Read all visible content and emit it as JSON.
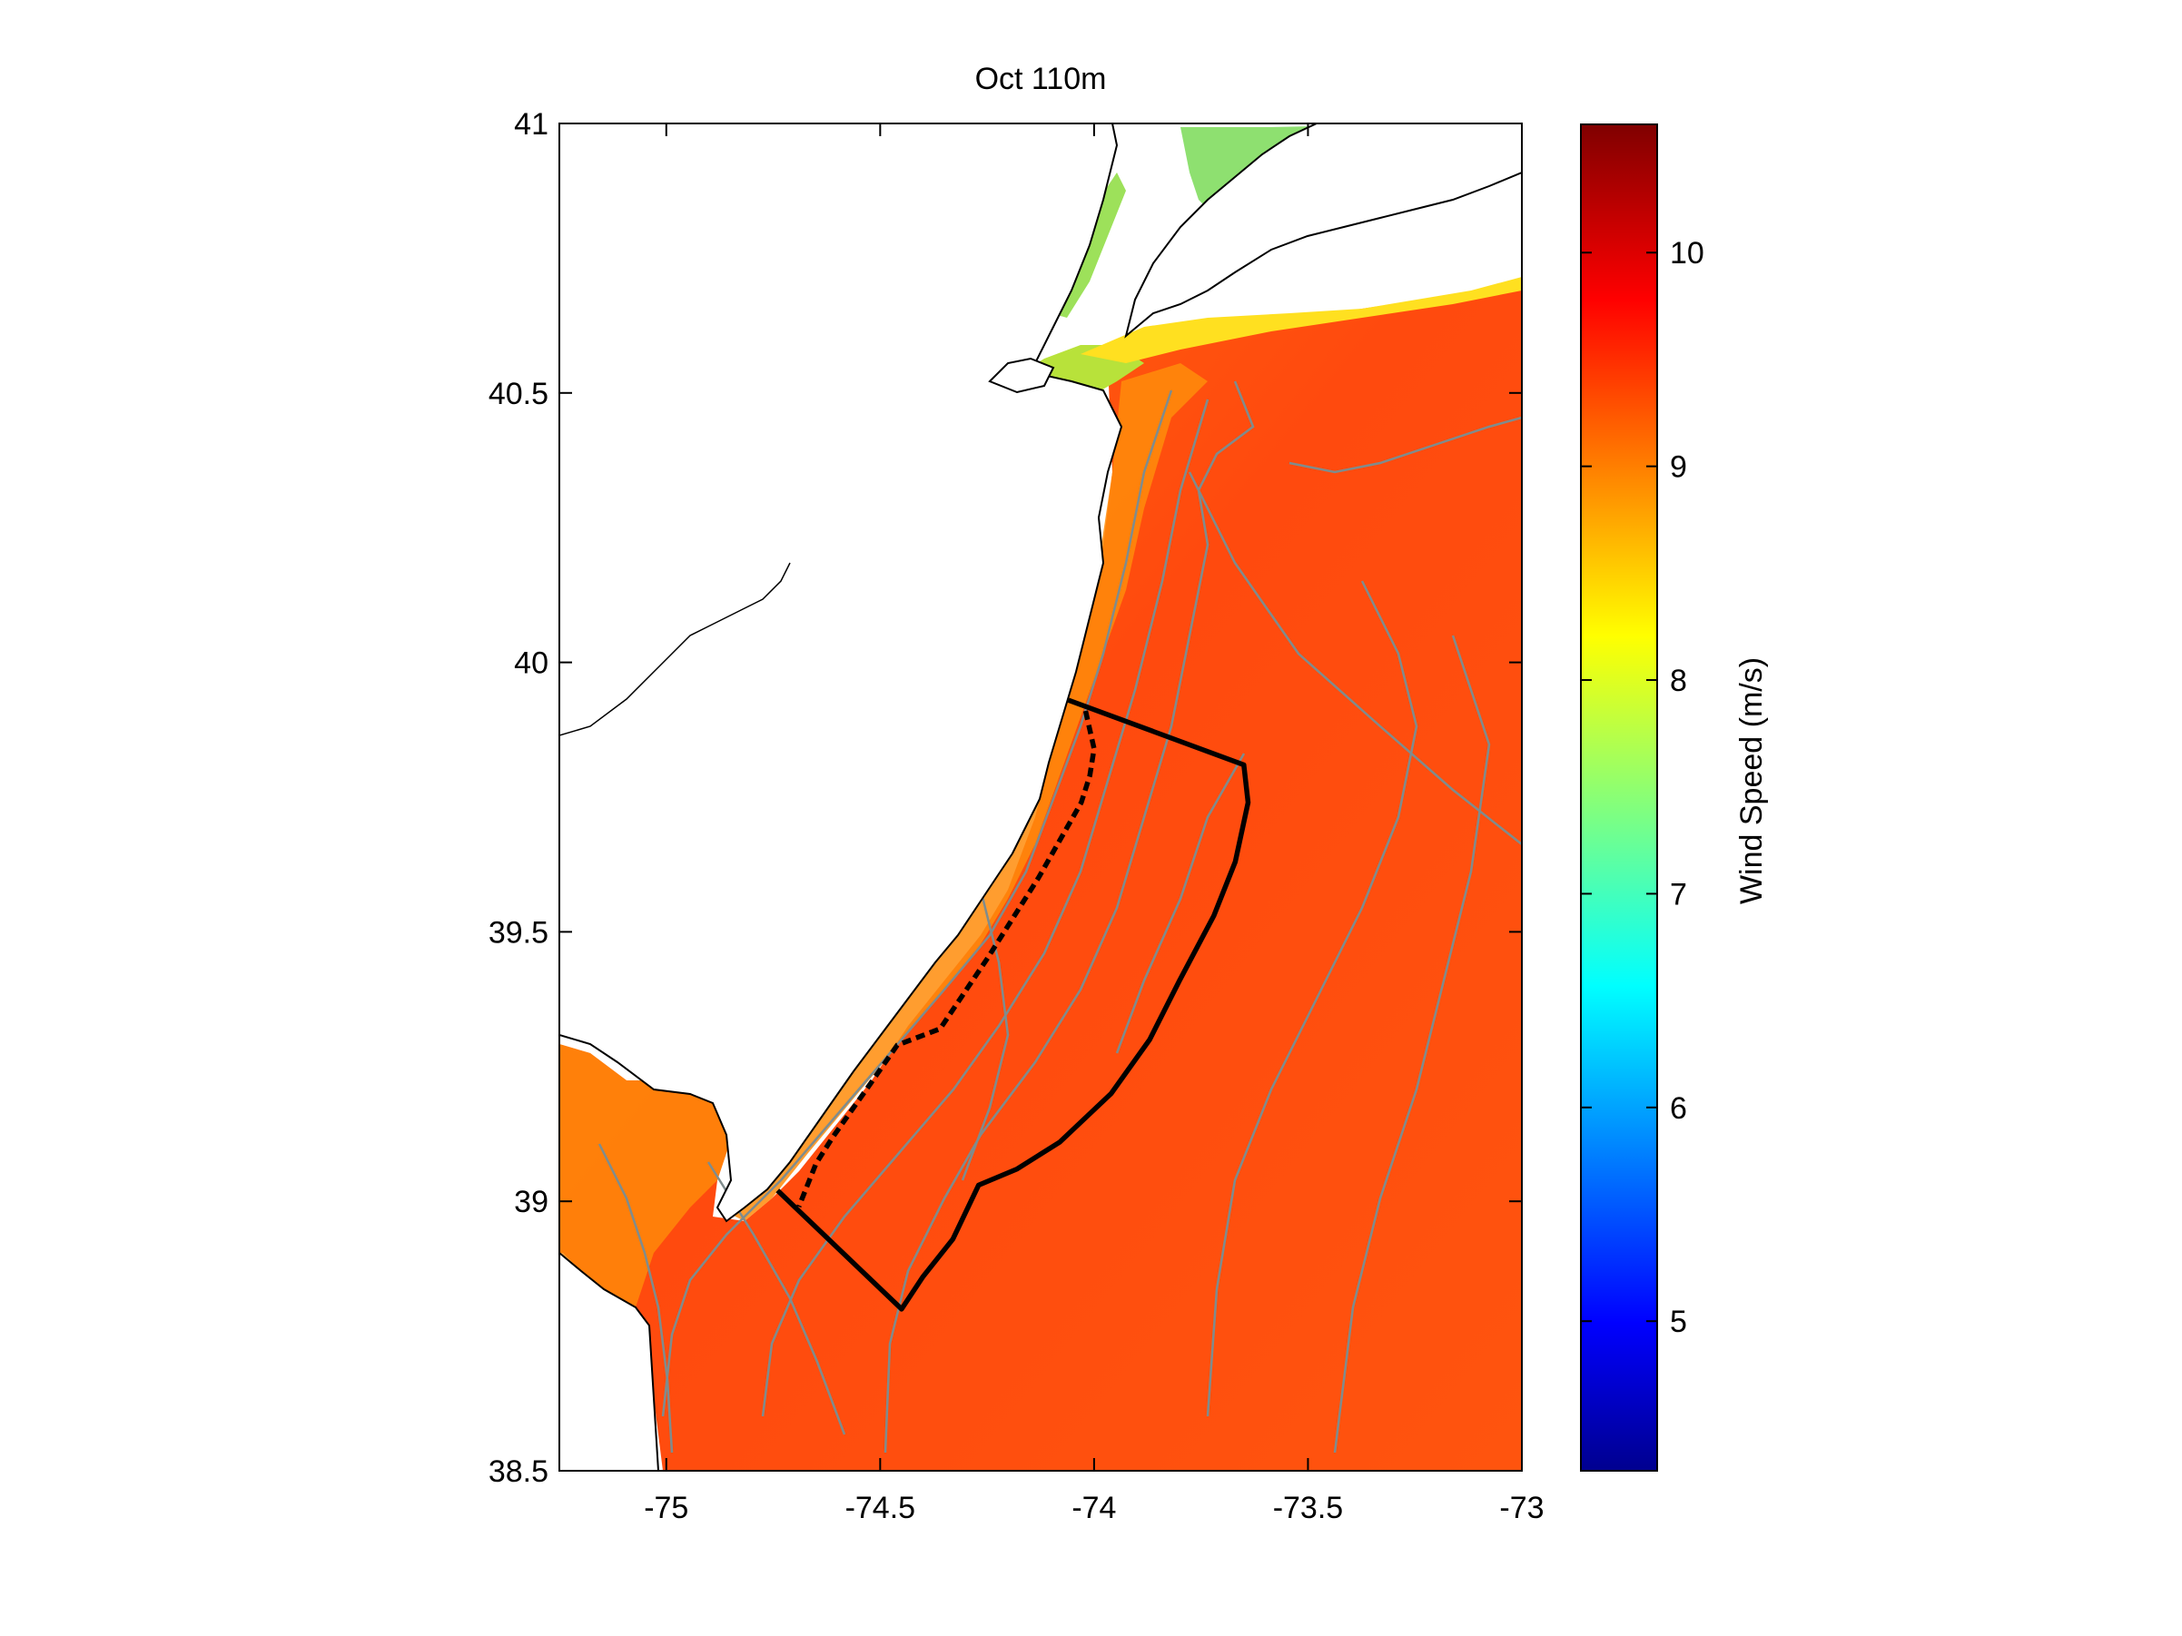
{
  "chart_data": {
    "type": "heatmap",
    "title": "Oct 110m",
    "xlabel": "",
    "ylabel": "",
    "xlim": [
      -75.25,
      -73
    ],
    "ylim": [
      38.5,
      41
    ],
    "x_ticks": [
      -75,
      -74.5,
      -74,
      -73.5,
      -73
    ],
    "y_ticks": [
      38.5,
      39,
      39.5,
      40,
      40.5,
      41
    ],
    "x_tick_labels": [
      "-75",
      "-74.5",
      "-74",
      "-73.5",
      "-73"
    ],
    "y_tick_labels": [
      "38.5",
      "39",
      "39.5",
      "40",
      "40.5",
      "41"
    ],
    "colorbar": {
      "label": "Wind Speed (m/s)",
      "range": [
        4.3,
        10.6
      ],
      "ticks": [
        5,
        6,
        7,
        8,
        9,
        10
      ],
      "tick_labels": [
        "5",
        "6",
        "7",
        "8",
        "9",
        "10"
      ],
      "colormap": "jet"
    },
    "field": {
      "nearshore_min": 7.0,
      "coastal_band": 9.0,
      "offshore_typical": 9.4,
      "offshore_max": 9.6
    },
    "wind_area_outline": [
      [
        -74.06,
        39.93
      ],
      [
        -73.65,
        39.81
      ],
      [
        -73.64,
        39.74
      ],
      [
        -73.67,
        39.63
      ],
      [
        -73.72,
        39.53
      ],
      [
        -73.8,
        39.41
      ],
      [
        -73.87,
        39.3
      ],
      [
        -73.96,
        39.2
      ],
      [
        -74.08,
        39.11
      ],
      [
        -74.18,
        39.06
      ],
      [
        -74.27,
        39.03
      ],
      [
        -74.33,
        38.93
      ],
      [
        -74.4,
        38.86
      ],
      [
        -74.45,
        38.8
      ],
      [
        -74.74,
        39.02
      ]
    ],
    "nearshore_boundary_dashed": [
      [
        -74.02,
        39.91
      ],
      [
        -74.0,
        39.84
      ],
      [
        -74.01,
        39.79
      ],
      [
        -74.03,
        39.74
      ],
      [
        -74.13,
        39.6
      ],
      [
        -74.25,
        39.45
      ],
      [
        -74.36,
        39.32
      ],
      [
        -74.46,
        39.29
      ],
      [
        -74.53,
        39.21
      ],
      [
        -74.61,
        39.12
      ],
      [
        -74.65,
        39.07
      ],
      [
        -74.69,
        38.99
      ]
    ]
  }
}
